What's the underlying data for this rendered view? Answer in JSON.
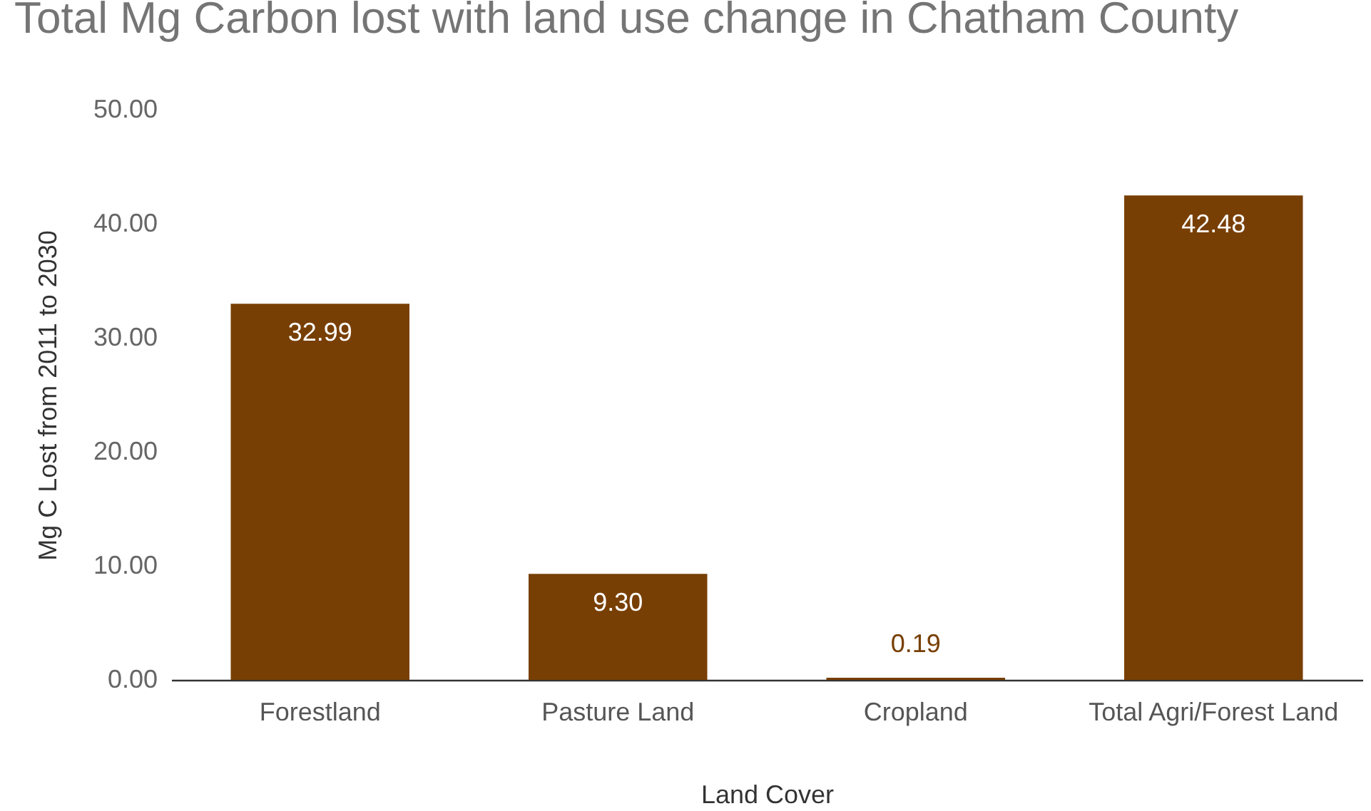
{
  "chart_data": {
    "type": "bar",
    "title": "Total Mg Carbon lost with land use change in Chatham County",
    "xlabel": "Land Cover",
    "ylabel": "Mg C Lost from 2011 to 2030",
    "categories": [
      "Forestland",
      "Pasture Land",
      "Cropland",
      "Total Agri/Forest Land"
    ],
    "values": [
      32.99,
      9.3,
      0.19,
      42.48
    ],
    "value_labels": [
      "32.99",
      "9.30",
      "0.19",
      "42.48"
    ],
    "color": "#783f04",
    "ylim": [
      0,
      50
    ],
    "yticks": [
      {
        "value": 0,
        "label": "0.00"
      },
      {
        "value": 10,
        "label": "10.00"
      },
      {
        "value": 20,
        "label": "20.00"
      },
      {
        "value": 30,
        "label": "30.00"
      },
      {
        "value": 40,
        "label": "40.00"
      },
      {
        "value": 50,
        "label": "50.00"
      }
    ],
    "grid": false
  }
}
